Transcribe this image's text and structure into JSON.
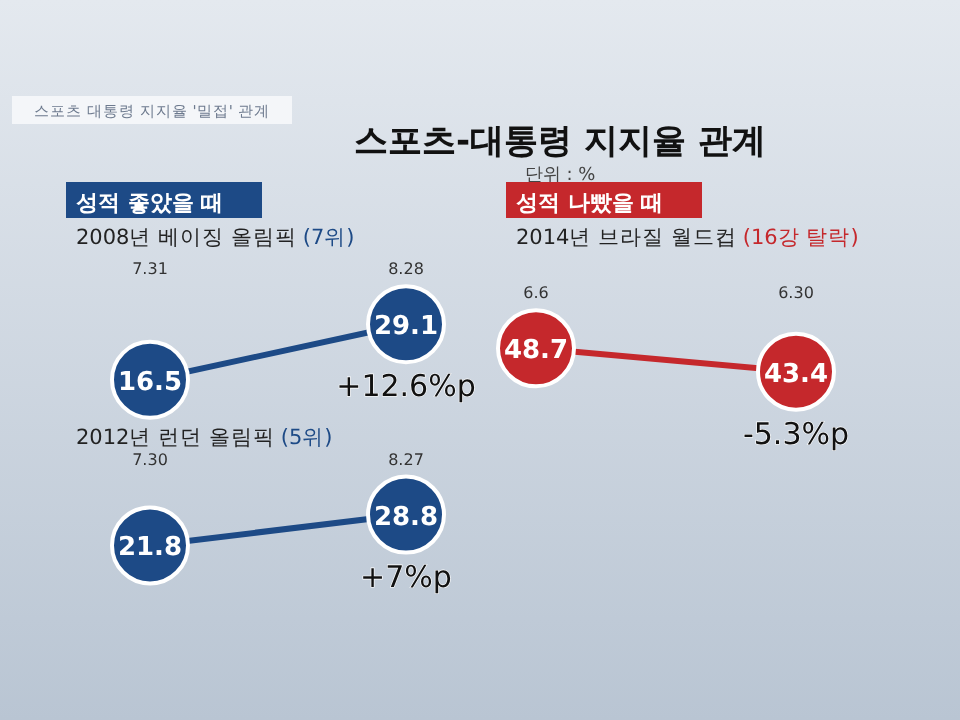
{
  "chart_data": [
    {
      "type": "line",
      "title": "2008년 베이징 올림픽",
      "subtitle": "(7위)",
      "categories": [
        "7.31",
        "8.28"
      ],
      "series": [
        {
          "color": "#1d4a86",
          "values": [
            16.5,
            29.1
          ]
        }
      ],
      "data_labels": true,
      "marker": "circle",
      "annotations": [
        "스포츠 대통령 지지율 '밀접' 관계",
        "스포츠-대통령 지지율 관계",
        "단위 : %",
        "성적 좋았을 때",
        {
          "text": "+12.6%p",
          "x": "8.28",
          "y": 29.1
        }
      ]
    },
    {
      "type": "line",
      "title": "2012년 런던 올림픽",
      "subtitle": "(5위)",
      "categories": [
        "7.30",
        "8.27"
      ],
      "series": [
        {
          "color": "#1d4a86",
          "values": [
            21.8,
            28.8
          ]
        }
      ],
      "data_labels": true,
      "marker": "circle",
      "annotations": [
        {
          "text": "+7%p",
          "x": "8.27",
          "y": 28.8
        }
      ]
    },
    {
      "type": "line",
      "title": "2014년 브라질 월드컵",
      "subtitle": "(16강 탈락)",
      "categories": [
        "6.6",
        "6.30"
      ],
      "series": [
        {
          "color": "#c5282c",
          "values": [
            48.7,
            43.4
          ]
        }
      ],
      "data_labels": true,
      "marker": "circle",
      "annotations": [
        "성적 나빴을 때",
        {
          "text": "-5.3%p",
          "x": "6.30",
          "y": 43.4
        }
      ]
    }
  ]
}
